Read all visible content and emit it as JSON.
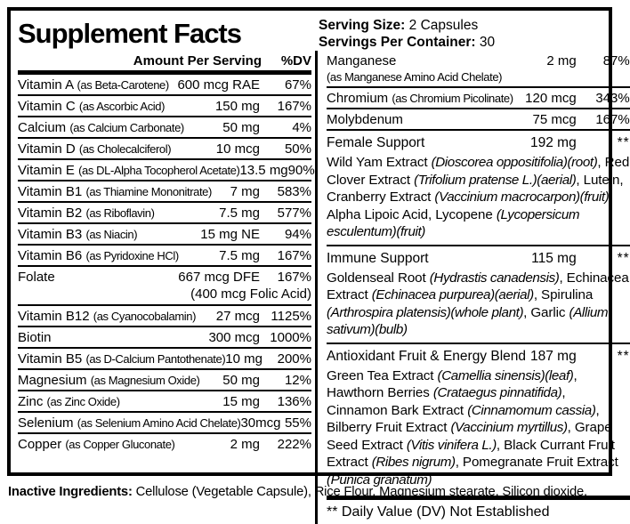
{
  "colors": {
    "text": "#000000",
    "background": "#ffffff"
  },
  "header": {
    "title": "Supplement Facts",
    "serving_size_label": "Serving Size:",
    "serving_size_value": "2 Capsules",
    "servings_label": "Servings Per Container:",
    "servings_value": "30"
  },
  "left_column": {
    "header_amount": "Amount Per Serving",
    "header_dv": "%DV",
    "rows": [
      {
        "name": "Vitamin A",
        "qualifier": "(as Beta-Carotene)",
        "amount": "600 mcg RAE",
        "dv": "67%"
      },
      {
        "name": "Vitamin C",
        "qualifier": "(as Ascorbic Acid)",
        "amount": "150 mg",
        "dv": "167%"
      },
      {
        "name": "Calcium",
        "qualifier": "(as Calcium Carbonate)",
        "amount": "50 mg",
        "dv": "4%"
      },
      {
        "name": "Vitamin D",
        "qualifier": "(as Cholecalciferol)",
        "amount": "10 mcg",
        "dv": "50%"
      },
      {
        "name": "Vitamin E",
        "qualifier": "(as DL-Alpha Tocopherol Acetate)",
        "amount": "13.5 mg",
        "dv": "90%"
      },
      {
        "name": "Vitamin B1",
        "qualifier": "(as Thiamine Mononitrate)",
        "amount": "7 mg",
        "dv": "583%"
      },
      {
        "name": "Vitamin B2",
        "qualifier": "(as Riboflavin)",
        "amount": "7.5 mg",
        "dv": "577%"
      },
      {
        "name": "Vitamin B3",
        "qualifier": "(as Niacin)",
        "amount": "15 mg NE",
        "dv": "94%"
      },
      {
        "name": "Vitamin B6",
        "qualifier": "(as Pyridoxine HCl)",
        "amount": "7.5 mg",
        "dv": "167%"
      },
      {
        "name": "Folate",
        "qualifier": "",
        "amount": "667 mcg DFE",
        "dv": "167%",
        "amount_note": "(400 mcg Folic Acid)"
      },
      {
        "name": "Vitamin B12",
        "qualifier": "(as Cyanocobalamin)",
        "amount": "27 mcg",
        "dv": "1125%"
      },
      {
        "name": "Biotin",
        "qualifier": "",
        "amount": "300 mcg",
        "dv": "1000%"
      },
      {
        "name": "Vitamin B5",
        "qualifier": "(as D-Calcium Pantothenate)",
        "amount": "10 mg",
        "dv": "200%"
      },
      {
        "name": "Magnesium",
        "qualifier": "(as Magnesium Oxide)",
        "amount": "50 mg",
        "dv": "12%"
      },
      {
        "name": "Zinc",
        "qualifier": "(as Zinc Oxide)",
        "amount": "15 mg",
        "dv": "136%"
      },
      {
        "name": "Selenium",
        "qualifier": "(as Selenium Amino Acid Chelate)",
        "amount": "30mcg",
        "dv": "55%"
      },
      {
        "name": "Copper",
        "qualifier": "(as Copper Gluconate)",
        "amount": "2 mg",
        "dv": "222%"
      }
    ]
  },
  "right_column": {
    "nutrients": [
      {
        "name": "Manganese",
        "qualifier_below": "(as Manganese Amino Acid Chelate)",
        "amount": "2 mg",
        "dv": "87%"
      },
      {
        "name": "Chromium",
        "qualifier": "(as Chromium Picolinate)",
        "amount": "120 mcg",
        "dv": "343%"
      },
      {
        "name": "Molybdenum",
        "qualifier": "",
        "amount": "75 mcg",
        "dv": "167%"
      }
    ],
    "blends": [
      {
        "name": "Female Support",
        "amount": "192 mg",
        "dv": "**",
        "ingredients": [
          {
            "t": "Wild Yam Extract ",
            "i": false
          },
          {
            "t": "(Dioscorea oppositifolia)(root)",
            "i": true
          },
          {
            "t": ", Red Clover Extract ",
            "i": false
          },
          {
            "t": "(Trifolium pratense L.)(aerial)",
            "i": true
          },
          {
            "t": ", Lutein, Cranberry Extract ",
            "i": false
          },
          {
            "t": "(Vaccinium macrocarpon)(fruit)",
            "i": true
          },
          {
            "t": ", Alpha Lipoic Acid, Lycopene ",
            "i": false
          },
          {
            "t": "(Lycopersicum esculentum)(fruit)",
            "i": true
          }
        ]
      },
      {
        "name": "Immune Support",
        "amount": "115 mg",
        "dv": "**",
        "ingredients": [
          {
            "t": "Goldenseal Root ",
            "i": false
          },
          {
            "t": "(Hydrastis canadensis)",
            "i": true
          },
          {
            "t": ", Echinacea Extract ",
            "i": false
          },
          {
            "t": "(Echinacea purpurea)(aerial)",
            "i": true
          },
          {
            "t": ", Spirulina ",
            "i": false
          },
          {
            "t": "(Arthrospira platensis)(whole plant)",
            "i": true
          },
          {
            "t": ", Garlic ",
            "i": false
          },
          {
            "t": "(Allium sativum)(bulb)",
            "i": true
          }
        ]
      },
      {
        "name": "Antioxidant Fruit & Energy Blend",
        "amount": "187 mg",
        "dv": "**",
        "ingredients": [
          {
            "t": "Green Tea Extract ",
            "i": false
          },
          {
            "t": "(Camellia sinensis)(leaf)",
            "i": true
          },
          {
            "t": ", Hawthorn Berries ",
            "i": false
          },
          {
            "t": "(Crataegus pinnatifida)",
            "i": true
          },
          {
            "t": ", Cinnamon Bark Extract ",
            "i": false
          },
          {
            "t": "(Cinnamomum cassia)",
            "i": true
          },
          {
            "t": ", Bilberry Fruit Extract ",
            "i": false
          },
          {
            "t": "(Vaccinium myrtillus)",
            "i": true
          },
          {
            "t": ", Grape Seed Extract ",
            "i": false
          },
          {
            "t": "(Vitis vinifera L.)",
            "i": true
          },
          {
            "t": ", Black Currant Fruit Extract ",
            "i": false
          },
          {
            "t": "(Ribes nigrum)",
            "i": true
          },
          {
            "t": ", Pomegranate Fruit Extract ",
            "i": false
          },
          {
            "t": "(Punica granatum)",
            "i": true
          }
        ]
      }
    ],
    "footnote": "** Daily Value (DV) Not Established"
  },
  "footer": {
    "label": "Inactive Ingredients:",
    "text": " Cellulose (Vegetable Capsule), Rice Flour, Magnesium stearate, Silicon dioxide."
  }
}
